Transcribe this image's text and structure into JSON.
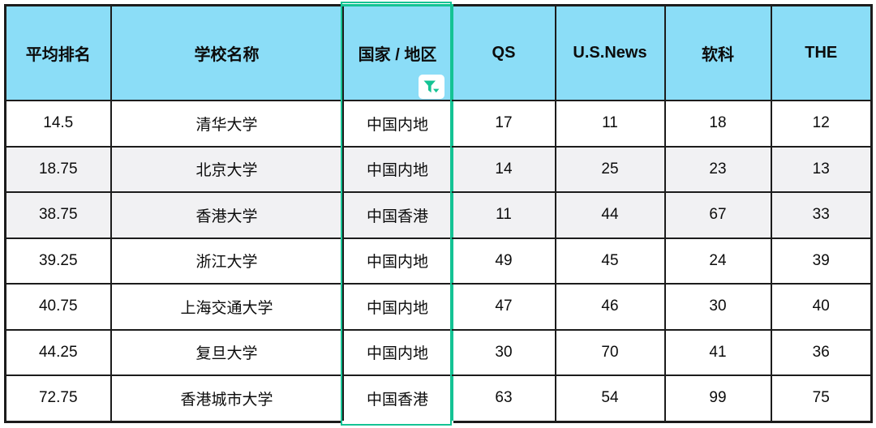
{
  "table": {
    "columns": [
      {
        "key": "avg_rank",
        "label": "平均排名"
      },
      {
        "key": "school",
        "label": "学校名称"
      },
      {
        "key": "region",
        "label": "国家 / 地区",
        "has_filter": true
      },
      {
        "key": "qs",
        "label": "QS"
      },
      {
        "key": "usnews",
        "label": "U.S.News"
      },
      {
        "key": "ruanke",
        "label": "软科"
      },
      {
        "key": "the",
        "label": "THE"
      }
    ],
    "rows": [
      {
        "cells": [
          "14.5",
          "清华大学",
          "中国内地",
          "17",
          "11",
          "18",
          "12"
        ],
        "shaded": false
      },
      {
        "cells": [
          "18.75",
          "北京大学",
          "中国内地",
          "14",
          "25",
          "23",
          "13"
        ],
        "shaded": true
      },
      {
        "cells": [
          "38.75",
          "香港大学",
          "中国香港",
          "11",
          "44",
          "67",
          "33"
        ],
        "shaded": true
      },
      {
        "cells": [
          "39.25",
          "浙江大学",
          "中国内地",
          "49",
          "45",
          "24",
          "39"
        ],
        "shaded": false
      },
      {
        "cells": [
          "40.75",
          "上海交通大学",
          "中国内地",
          "47",
          "46",
          "30",
          "40"
        ],
        "shaded": false
      },
      {
        "cells": [
          "44.25",
          "复旦大学",
          "中国内地",
          "30",
          "70",
          "41",
          "36"
        ],
        "shaded": false
      },
      {
        "cells": [
          "72.75",
          "香港城市大学",
          "中国香港",
          "63",
          "54",
          "99",
          "75"
        ],
        "shaded": false
      }
    ],
    "filter_icon": "filter-funnel-icon",
    "colors": {
      "header_bg": "#8bddf7",
      "border": "#1c1c1c",
      "highlight_green": "#14c394",
      "shaded_row_bg": "#f1f1f3",
      "filter_button_bg": "#ffffff"
    }
  },
  "chart_data": {
    "type": "table",
    "title": "",
    "columns": [
      "平均排名",
      "学校名称",
      "国家 / 地区",
      "QS",
      "U.S.News",
      "软科",
      "THE"
    ],
    "rows": [
      [
        "14.5",
        "清华大学",
        "中国内地",
        17,
        11,
        18,
        12
      ],
      [
        "18.75",
        "北京大学",
        "中国内地",
        14,
        25,
        23,
        13
      ],
      [
        "38.75",
        "香港大学",
        "中国香港",
        11,
        44,
        67,
        33
      ],
      [
        "39.25",
        "浙江大学",
        "中国内地",
        49,
        45,
        24,
        39
      ],
      [
        "40.75",
        "上海交通大学",
        "中国内地",
        47,
        46,
        30,
        40
      ],
      [
        "44.25",
        "复旦大学",
        "中国内地",
        30,
        70,
        41,
        36
      ],
      [
        "72.75",
        "香港城市大学",
        "中国香港",
        63,
        54,
        99,
        75
      ]
    ]
  }
}
